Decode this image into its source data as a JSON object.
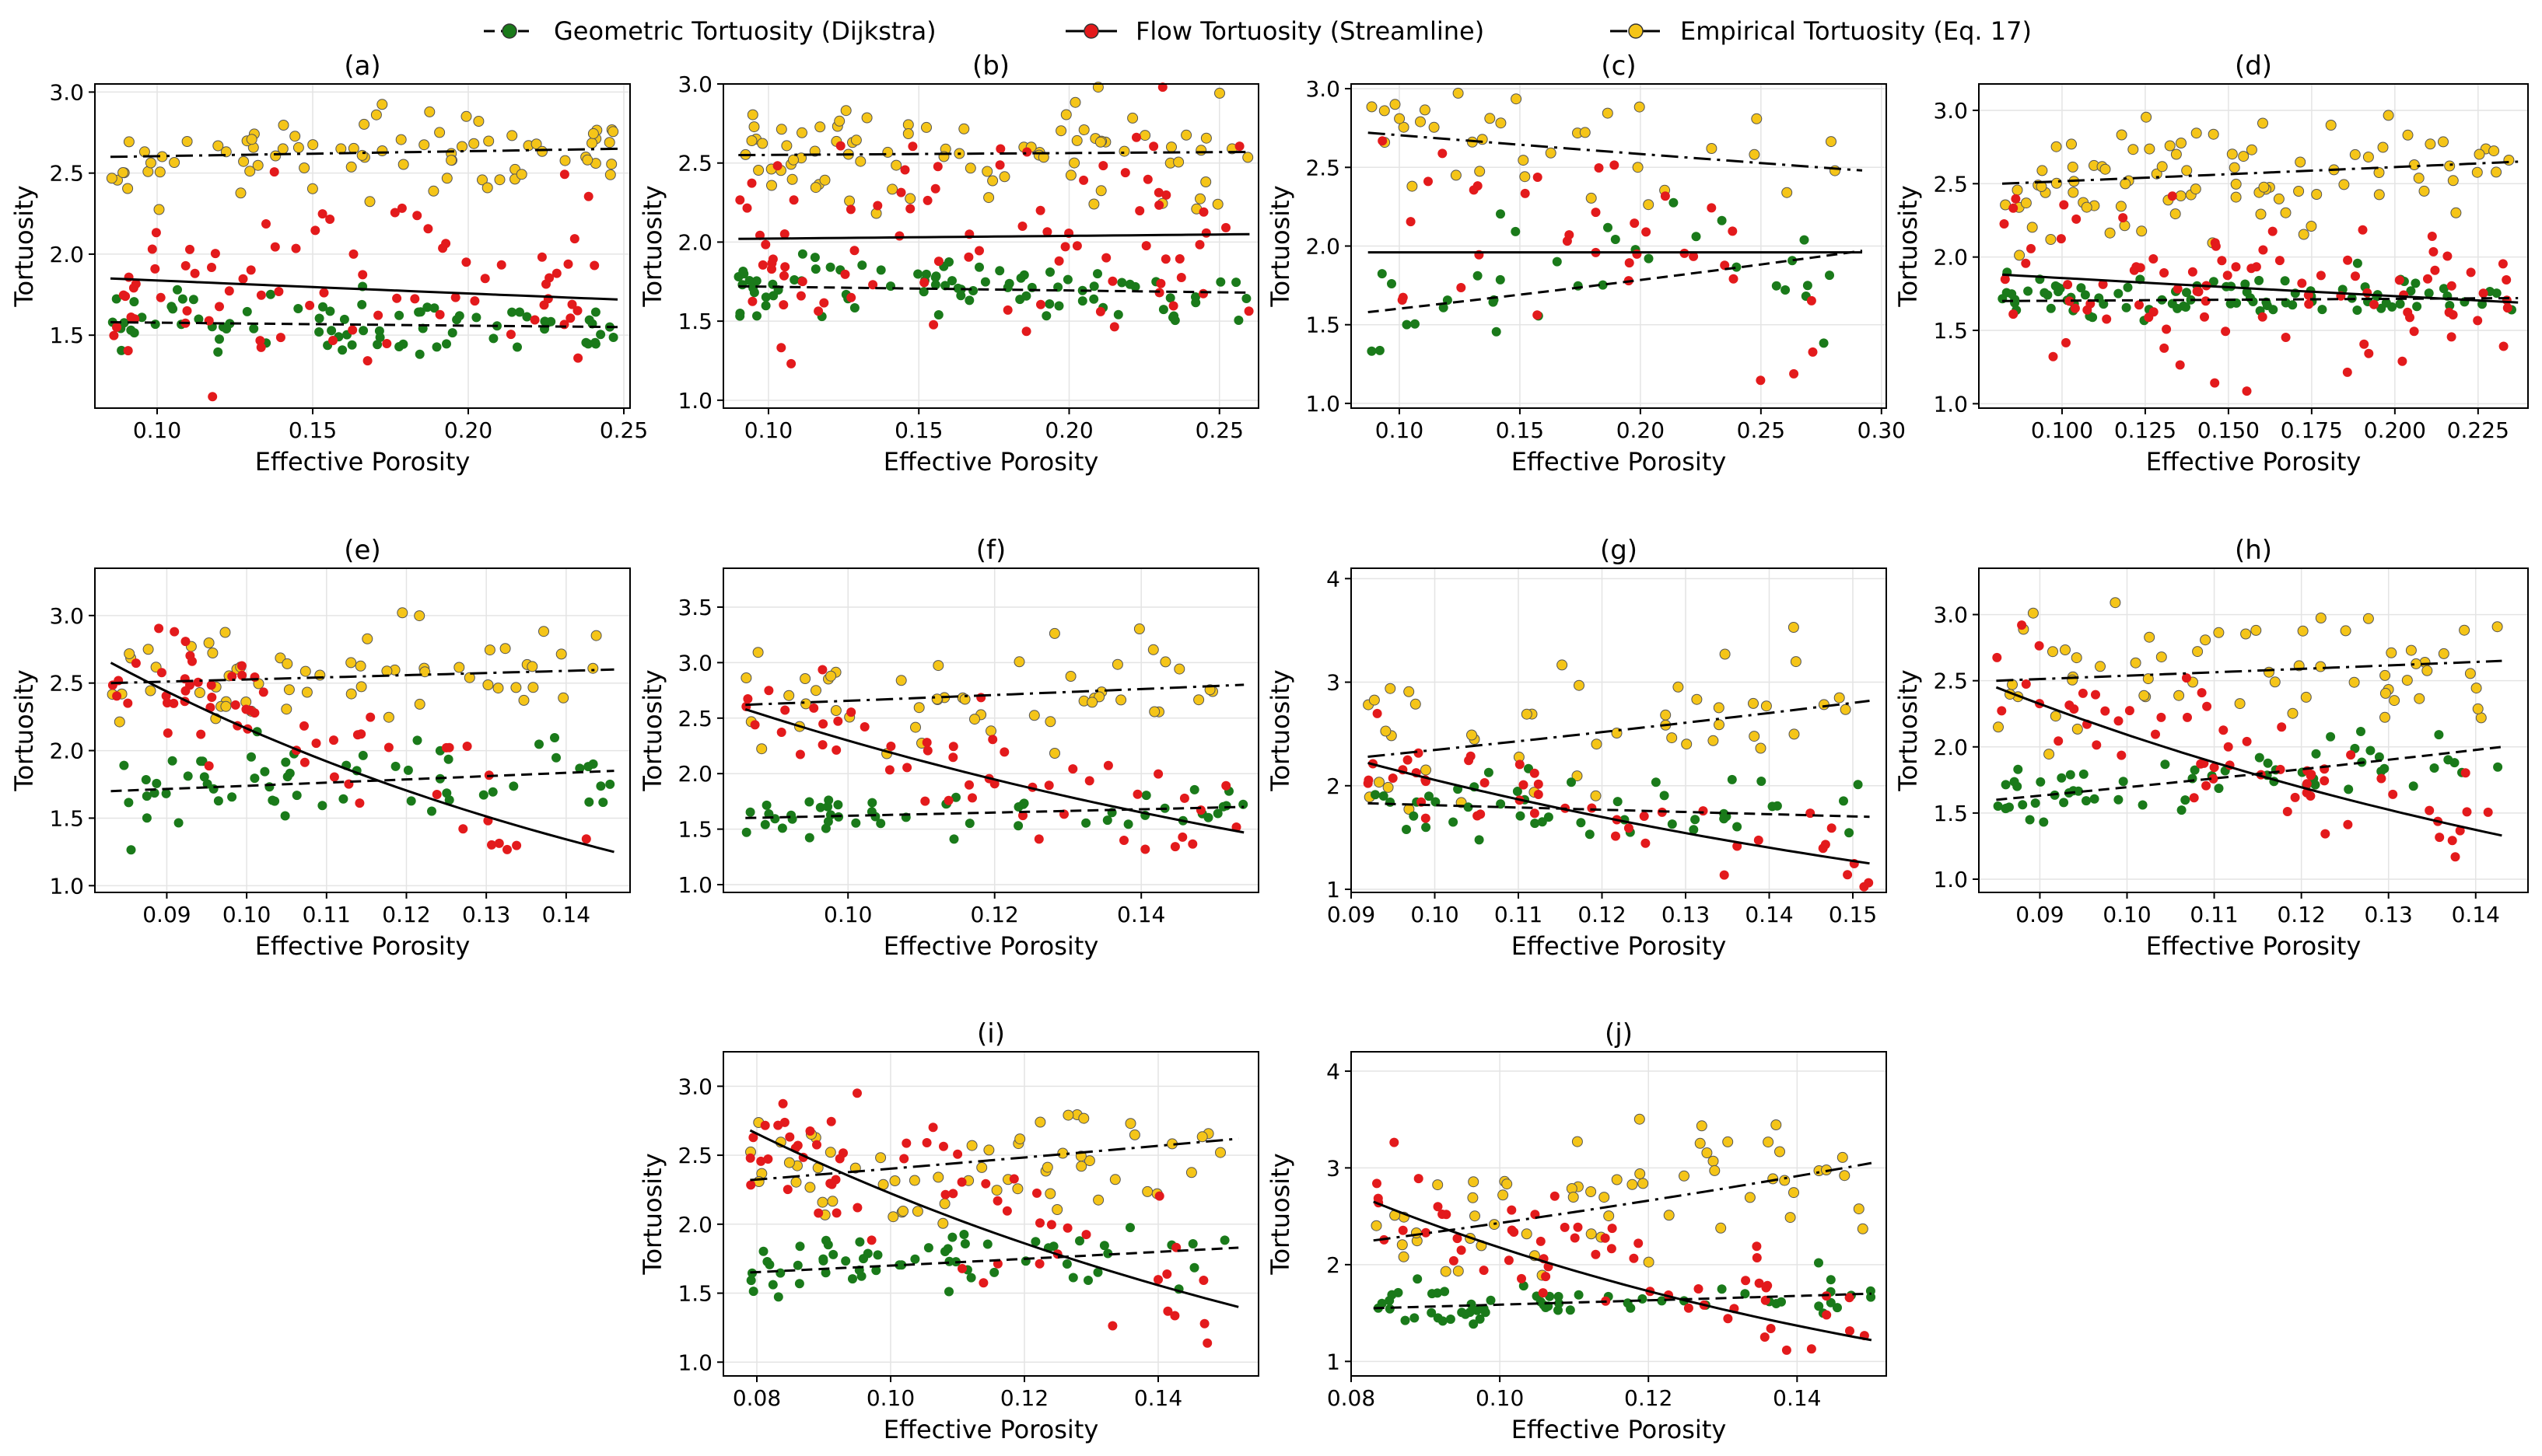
{
  "legend": [
    {
      "label": "Geometric Tortuosity (Dijkstra)",
      "color": "#1a7a1a",
      "dash": "dashed",
      "key": "geo"
    },
    {
      "label": "Flow Tortuosity (Streamline)",
      "color": "#e31a1c",
      "dash": "solid",
      "key": "flow"
    },
    {
      "label": "Empirical Tortuosity (Eq. 17)",
      "color": "#f5c518",
      "dash": "dashdot",
      "key": "emp"
    }
  ],
  "colors": {
    "geo": "#1a7a1a",
    "flow": "#e31a1c",
    "emp": "#f5c518",
    "edge": "#333333",
    "fit": "#000000"
  },
  "xlabel": "Effective Porosity",
  "ylabel": "Tortuosity",
  "chart_data": [
    {
      "type": "scatter",
      "title": "(a)",
      "xlim": [
        0.08,
        0.252
      ],
      "ylim": [
        1.05,
        3.05
      ],
      "xticks": [
        0.1,
        0.15,
        0.2,
        0.25
      ],
      "xtick_labels": [
        "0.10",
        "0.15",
        "0.20",
        "0.25"
      ],
      "yticks": [
        1.5,
        2.0,
        2.5,
        3.0
      ],
      "ytick_labels": [
        "1.5",
        "2.0",
        "2.5",
        "3.0"
      ],
      "x_range": [
        0.085,
        0.248
      ],
      "fits": {
        "geo": [
          1.58,
          1.55
        ],
        "flow": [
          1.85,
          1.72
        ],
        "emp": [
          2.6,
          2.65
        ]
      },
      "spread": {
        "geo": 0.09,
        "flow": 0.3,
        "emp": 0.12
      },
      "n": 80,
      "seed": 1
    },
    {
      "type": "scatter",
      "title": "(b)",
      "xlim": [
        0.085,
        0.263
      ],
      "ylim": [
        0.95,
        3.0
      ],
      "xticks": [
        0.1,
        0.15,
        0.2,
        0.25
      ],
      "xtick_labels": [
        "0.10",
        "0.15",
        "0.20",
        "0.25"
      ],
      "yticks": [
        1.0,
        1.5,
        2.0,
        2.5,
        3.0
      ],
      "ytick_labels": [
        "1.0",
        "1.5",
        "2.0",
        "2.5",
        "3.0"
      ],
      "x_range": [
        0.09,
        0.26
      ],
      "fits": {
        "geo": [
          1.72,
          1.68
        ],
        "flow": [
          2.02,
          2.05
        ],
        "emp": [
          2.55,
          2.57
        ]
      },
      "spread": {
        "geo": 0.1,
        "flow": 0.35,
        "emp": 0.17
      },
      "n": 85,
      "seed": 2
    },
    {
      "type": "scatter",
      "title": "(c)",
      "xlim": [
        0.08,
        0.302
      ],
      "ylim": [
        0.97,
        3.03
      ],
      "xticks": [
        0.1,
        0.15,
        0.2,
        0.25,
        0.3
      ],
      "xtick_labels": [
        "0.10",
        "0.15",
        "0.20",
        "0.25",
        "0.30"
      ],
      "yticks": [
        1.0,
        1.5,
        2.0,
        2.5,
        3.0
      ],
      "ytick_labels": [
        "1.0",
        "1.5",
        "2.0",
        "2.5",
        "3.0"
      ],
      "x_range": [
        0.087,
        0.292
      ],
      "fits": {
        "geo": [
          1.58,
          1.97
        ],
        "flow": [
          1.96,
          1.96
        ],
        "emp": [
          2.72,
          2.48
        ]
      },
      "spread": {
        "geo": 0.22,
        "flow": 0.35,
        "emp": 0.17
      },
      "n": 35,
      "seed": 3
    },
    {
      "type": "scatter",
      "title": "(d)",
      "xlim": [
        0.075,
        0.24
      ],
      "ylim": [
        0.97,
        3.18
      ],
      "xticks": [
        0.1,
        0.125,
        0.15,
        0.175,
        0.2,
        0.225
      ],
      "xtick_labels": [
        "0.100",
        "0.125",
        "0.150",
        "0.175",
        "0.200",
        "0.225"
      ],
      "yticks": [
        1.0,
        1.5,
        2.0,
        2.5,
        3.0
      ],
      "ytick_labels": [
        "1.0",
        "1.5",
        "2.0",
        "2.5",
        "3.0"
      ],
      "x_range": [
        0.082,
        0.237
      ],
      "fits": {
        "geo": [
          1.7,
          1.72
        ],
        "flow": [
          1.88,
          1.69
        ],
        "emp": [
          2.5,
          2.65
        ]
      },
      "spread": {
        "geo": 0.08,
        "flow": 0.28,
        "emp": 0.2
      },
      "n": 90,
      "seed": 4
    },
    {
      "type": "scatter",
      "title": "(e)",
      "xlim": [
        0.081,
        0.148
      ],
      "ylim": [
        0.95,
        3.35
      ],
      "xticks": [
        0.09,
        0.1,
        0.11,
        0.12,
        0.13,
        0.14
      ],
      "xtick_labels": [
        "0.09",
        "0.10",
        "0.11",
        "0.12",
        "0.13",
        "0.14"
      ],
      "yticks": [
        1.0,
        1.5,
        2.0,
        2.5,
        3.0
      ],
      "ytick_labels": [
        "1.0",
        "1.5",
        "2.0",
        "2.5",
        "3.0"
      ],
      "x_range": [
        0.083,
        0.146
      ],
      "fits": {
        "geo": [
          1.7,
          1.85
        ],
        "flow": [
          2.65,
          1.25
        ],
        "emp": [
          2.5,
          2.6
        ]
      },
      "spread": {
        "geo": 0.14,
        "flow": 0.18,
        "emp": 0.2
      },
      "n": 60,
      "seed": 5
    },
    {
      "type": "scatter",
      "title": "(f)",
      "xlim": [
        0.083,
        0.156
      ],
      "ylim": [
        0.93,
        3.85
      ],
      "xticks": [
        0.1,
        0.12,
        0.14
      ],
      "xtick_labels": [
        "0.10",
        "0.12",
        "0.14"
      ],
      "yticks": [
        1.0,
        1.5,
        2.0,
        2.5,
        3.0,
        3.5
      ],
      "ytick_labels": [
        "1.0",
        "1.5",
        "2.0",
        "2.5",
        "3.0",
        "3.5"
      ],
      "x_range": [
        0.086,
        0.154
      ],
      "fits": {
        "geo": [
          1.6,
          1.7
        ],
        "flow": [
          2.58,
          1.47
        ],
        "emp": [
          2.62,
          2.8
        ]
      },
      "spread": {
        "geo": 0.1,
        "flow": 0.25,
        "emp": 0.25
      },
      "n": 50,
      "seed": 6
    },
    {
      "type": "scatter",
      "title": "(g)",
      "xlim": [
        0.09,
        0.154
      ],
      "ylim": [
        0.97,
        4.1
      ],
      "xticks": [
        0.09,
        0.1,
        0.11,
        0.12,
        0.13,
        0.14,
        0.15
      ],
      "xtick_labels": [
        "0.09",
        "0.10",
        "0.11",
        "0.12",
        "0.13",
        "0.14",
        "0.15"
      ],
      "yticks": [
        1,
        2,
        3,
        4
      ],
      "ytick_labels": [
        "1",
        "2",
        "3",
        "4"
      ],
      "x_range": [
        0.092,
        0.152
      ],
      "fits": {
        "geo": [
          1.83,
          1.7
        ],
        "flow": [
          2.22,
          1.25
        ],
        "emp": [
          2.28,
          2.82
        ]
      },
      "spread": {
        "geo": 0.18,
        "flow": 0.2,
        "emp": 0.35
      },
      "n": 45,
      "seed": 7
    },
    {
      "type": "scatter",
      "title": "(h)",
      "xlim": [
        0.083,
        0.146
      ],
      "ylim": [
        0.9,
        3.35
      ],
      "xticks": [
        0.09,
        0.1,
        0.11,
        0.12,
        0.13,
        0.14
      ],
      "xtick_labels": [
        "0.09",
        "0.10",
        "0.11",
        "0.12",
        "0.13",
        "0.14"
      ],
      "yticks": [
        1.0,
        1.5,
        2.0,
        2.5,
        3.0
      ],
      "ytick_labels": [
        "1.0",
        "1.5",
        "2.0",
        "2.5",
        "3.0"
      ],
      "x_range": [
        0.085,
        0.143
      ],
      "fits": {
        "geo": [
          1.6,
          2.0
        ],
        "flow": [
          2.45,
          1.33
        ],
        "emp": [
          2.5,
          2.65
        ]
      },
      "spread": {
        "geo": 0.12,
        "flow": 0.2,
        "emp": 0.25
      },
      "n": 60,
      "seed": 8
    },
    {
      "type": "scatter",
      "title": "(i)",
      "xlim": [
        0.075,
        0.155
      ],
      "ylim": [
        0.9,
        3.25
      ],
      "xticks": [
        0.08,
        0.1,
        0.12,
        0.14
      ],
      "xtick_labels": [
        "0.08",
        "0.10",
        "0.12",
        "0.14"
      ],
      "yticks": [
        1.0,
        1.5,
        2.0,
        2.5,
        3.0
      ],
      "ytick_labels": [
        "1.0",
        "1.5",
        "2.0",
        "2.5",
        "3.0"
      ],
      "x_range": [
        0.079,
        0.152
      ],
      "fits": {
        "geo": [
          1.65,
          1.83
        ],
        "flow": [
          2.68,
          1.4
        ],
        "emp": [
          2.32,
          2.62
        ]
      },
      "spread": {
        "geo": 0.12,
        "flow": 0.28,
        "emp": 0.2
      },
      "n": 60,
      "seed": 9
    },
    {
      "type": "scatter",
      "title": "(j)",
      "xlim": [
        0.08,
        0.152
      ],
      "ylim": [
        0.85,
        4.2
      ],
      "xticks": [
        0.08,
        0.1,
        0.12,
        0.14
      ],
      "xtick_labels": [
        "0.08",
        "0.10",
        "0.12",
        "0.14"
      ],
      "yticks": [
        1,
        2,
        3,
        4
      ],
      "ytick_labels": [
        "1",
        "2",
        "3",
        "4"
      ],
      "x_range": [
        0.083,
        0.15
      ],
      "fits": {
        "geo": [
          1.55,
          1.7
        ],
        "flow": [
          2.65,
          1.22
        ],
        "emp": [
          2.25,
          3.05
        ]
      },
      "spread": {
        "geo": 0.12,
        "flow": 0.3,
        "emp": 0.35
      },
      "n": 60,
      "seed": 10
    }
  ]
}
